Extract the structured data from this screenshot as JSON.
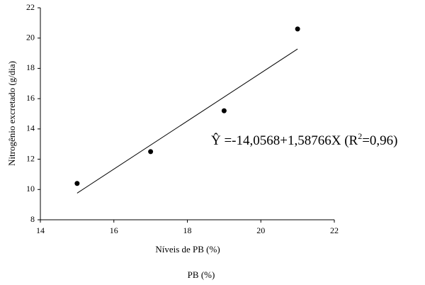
{
  "chart_data": {
    "type": "scatter",
    "x_label": "Níveis de PB (%)",
    "y_label": "Nitrogênio excretado (g/dia)",
    "bottom_label": "PB (%)",
    "x": [
      15,
      17,
      19,
      21
    ],
    "values": [
      10.4,
      12.5,
      15.2,
      20.6
    ],
    "color": "#000000",
    "trendline": {
      "x": [
        15,
        21
      ],
      "values": [
        9.76,
        19.28
      ]
    },
    "equation": {
      "text": "Ŷ =-14,0568+1,58766X (R",
      "superscript": "2",
      "text_after": "=0,96)"
    },
    "xlim": [
      14,
      22
    ],
    "xticks": [
      14,
      16,
      18,
      20,
      22
    ],
    "ylim": [
      8,
      22
    ],
    "yticks": [
      8,
      10,
      12,
      14,
      16,
      18,
      20,
      22
    ],
    "grid": false
  }
}
